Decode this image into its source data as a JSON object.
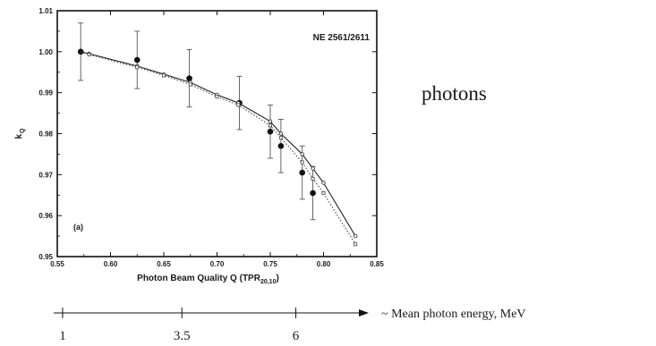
{
  "side_label": "photons",
  "chart_data": {
    "type": "scatter",
    "title": "",
    "annotation": "NE 2561/2611",
    "panel_label": "(a)",
    "xlabel_main": "Photon Beam Quality Q (TPR",
    "xlabel_sub": "20,10",
    "xlabel_end": ")",
    "ylabel_main": "k",
    "ylabel_sub": "Q",
    "xlim": [
      0.55,
      0.85
    ],
    "ylim": [
      0.95,
      1.01
    ],
    "x_ticks": [
      "0.55",
      "0.60",
      "0.65",
      "0.70",
      "0.75",
      "0.80",
      "0.85"
    ],
    "y_ticks": [
      "0.95",
      "0.96",
      "0.97",
      "0.98",
      "0.99",
      "1.00",
      "1.01"
    ],
    "series": [
      {
        "style": "filled-circles-with-error-bars",
        "color": "#111111",
        "x": [
          0.572,
          0.625,
          0.674,
          0.721,
          0.75,
          0.76,
          0.78,
          0.79
        ],
        "y": [
          1.0,
          0.998,
          0.9935,
          0.9875,
          0.9805,
          0.977,
          0.9705,
          0.9655
        ],
        "err": [
          0.007,
          0.007,
          0.007,
          0.0065,
          0.0065,
          0.0065,
          0.0065,
          0.0065
        ]
      },
      {
        "style": "solid-line-open-markers",
        "color": "#222222",
        "x": [
          0.572,
          0.58,
          0.625,
          0.65,
          0.675,
          0.7,
          0.72,
          0.75,
          0.76,
          0.78,
          0.79,
          0.8,
          0.83
        ],
        "y": [
          1.0,
          0.9995,
          0.9965,
          0.9945,
          0.9925,
          0.9895,
          0.9875,
          0.983,
          0.98,
          0.975,
          0.9715,
          0.968,
          0.955
        ]
      },
      {
        "style": "dotted-line-open-markers",
        "color": "#444444",
        "x": [
          0.572,
          0.58,
          0.625,
          0.65,
          0.675,
          0.7,
          0.72,
          0.75,
          0.76,
          0.78,
          0.79,
          0.8,
          0.83
        ],
        "y": [
          1.0,
          0.9993,
          0.9962,
          0.9942,
          0.992,
          0.989,
          0.987,
          0.982,
          0.979,
          0.973,
          0.969,
          0.9655,
          0.953
        ]
      }
    ]
  },
  "energy_axis": {
    "label": "~ Mean photon energy, MeV",
    "ticks": [
      {
        "label": "1",
        "x": 0.555
      },
      {
        "label": "3.5",
        "x": 0.667
      },
      {
        "label": "6",
        "x": 0.774
      }
    ]
  }
}
